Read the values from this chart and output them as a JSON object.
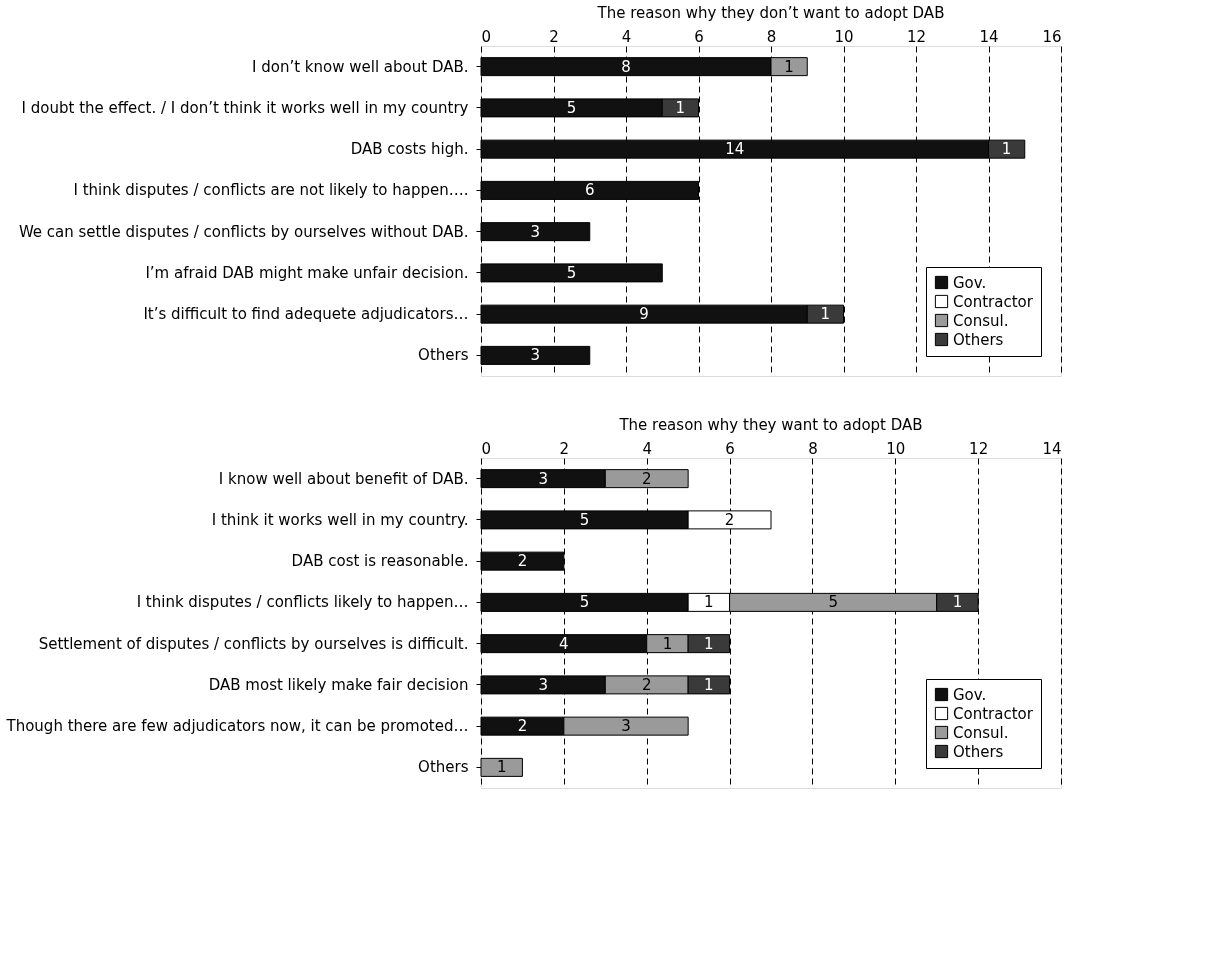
{
  "chart_data": [
    {
      "type": "bar",
      "orientation": "horizontal",
      "stacked": true,
      "title": "The reason why they don’t want to adopt DAB",
      "categories": [
        "I don’t know well about DAB.",
        "I doubt the effect. / I don’t think it works well in my country",
        "DAB costs high.",
        "I think disputes / conflicts are not likely to happen….",
        "We can settle disputes / conflicts by ourselves without DAB.",
        "I’m afraid DAB might make unfair decision.",
        "It’s difficult to find adequete adjudicators…",
        "Others"
      ],
      "series": [
        {
          "name": "Gov.",
          "color": "#111111",
          "values": [
            8,
            5,
            14,
            6,
            3,
            5,
            9,
            3
          ]
        },
        {
          "name": "Contractor",
          "color": "#ffffff",
          "values": [
            null,
            null,
            null,
            null,
            null,
            null,
            null,
            null
          ]
        },
        {
          "name": "Consul.",
          "color": "#9a9a9a",
          "values": [
            1,
            null,
            null,
            null,
            null,
            null,
            null,
            null
          ]
        },
        {
          "name": "Others",
          "color": "#3a3a3a",
          "values": [
            null,
            1,
            1,
            null,
            null,
            null,
            1,
            null
          ]
        }
      ],
      "xlim": [
        0,
        16
      ],
      "xticks": [
        0,
        2,
        4,
        6,
        8,
        10,
        12,
        14,
        16
      ],
      "grid": "x",
      "legend": "bottom right",
      "data_labels": true
    },
    {
      "type": "bar",
      "orientation": "horizontal",
      "stacked": true,
      "title": "The reason why they want to adopt DAB",
      "categories": [
        "I know well about benefit of DAB.",
        "I think it works well in my country.",
        "DAB cost is reasonable.",
        "I think disputes / conflicts likely to happen…",
        "Settlement of disputes / conflicts by ourselves is difficult.",
        "DAB most likely make fair decision",
        "Though there are few adjudicators now, it can be promoted…",
        "Others"
      ],
      "series": [
        {
          "name": "Gov.",
          "color": "#111111",
          "values": [
            3,
            5,
            2,
            5,
            4,
            3,
            2,
            null
          ]
        },
        {
          "name": "Contractor",
          "color": "#ffffff",
          "values": [
            null,
            2,
            null,
            1,
            null,
            null,
            null,
            null
          ]
        },
        {
          "name": "Consul.",
          "color": "#9a9a9a",
          "values": [
            2,
            null,
            null,
            5,
            1,
            2,
            3,
            1
          ]
        },
        {
          "name": "Others",
          "color": "#3a3a3a",
          "values": [
            null,
            null,
            null,
            1,
            1,
            1,
            null,
            null
          ]
        }
      ],
      "xlim": [
        0,
        14
      ],
      "xticks": [
        0,
        2,
        4,
        6,
        8,
        10,
        12,
        14
      ],
      "grid": "x",
      "legend": "bottom right",
      "data_labels": true
    }
  ]
}
